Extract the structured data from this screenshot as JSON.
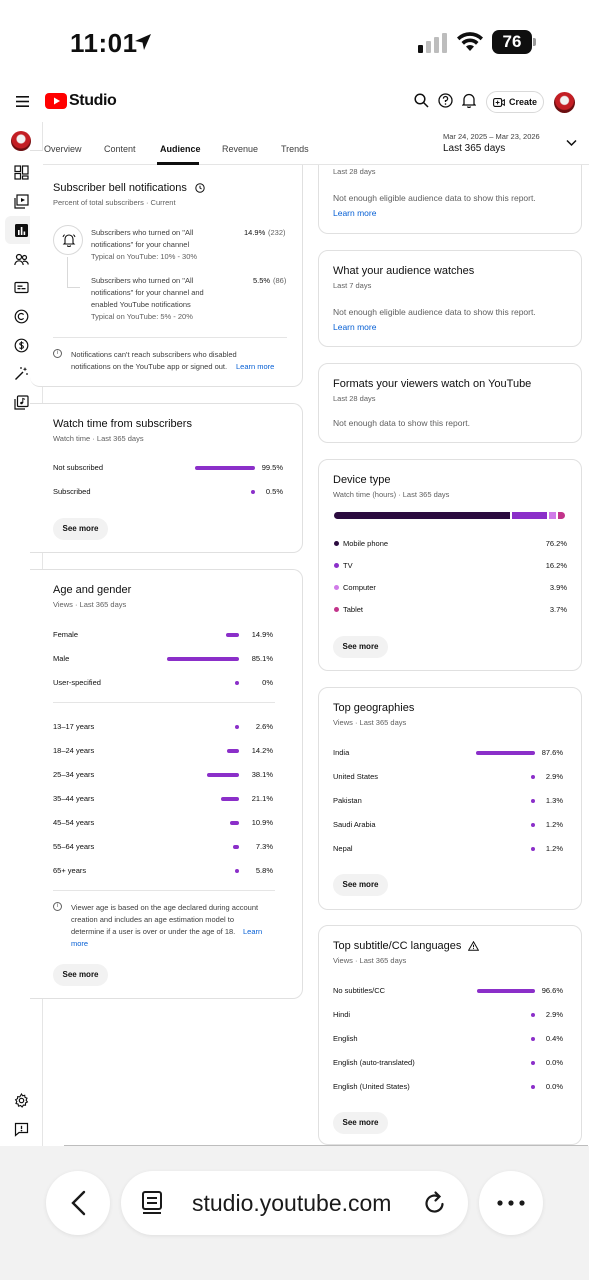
{
  "status_bar": {
    "time": "11:01",
    "battery": "76"
  },
  "header": {
    "brand": "Studio",
    "create_label": "Create"
  },
  "tabs": [
    {
      "label": "Overview"
    },
    {
      "label": "Content"
    },
    {
      "label": "Audience"
    },
    {
      "label": "Revenue"
    },
    {
      "label": "Trends"
    }
  ],
  "date_range": {
    "range": "Mar 24, 2025 – Mar 23, 2026",
    "label": "Last 365 days"
  },
  "bell": {
    "title": "Subscriber bell notifications",
    "subtitle": "Percent of total subscribers · Current",
    "row1": {
      "text_line1": "Subscribers who turned on \"All",
      "text_line2": "notifications\" for your channel",
      "typical": "Typical on YouTube: 10% - 30%",
      "pct": "14.9%",
      "count": "(232)"
    },
    "row2": {
      "text_line1": "Subscribers who turned on \"All",
      "text_line2": "notifications\" for your channel and",
      "text_line3": "enabled YouTube notifications",
      "typical": "Typical on YouTube: 5% - 20%",
      "pct": "5.5%",
      "count": "(86)"
    },
    "note_line1": "Notifications can't reach subscribers who disabled",
    "note_line2": "notifications on the YouTube app or signed out.",
    "learn_more": "Learn more"
  },
  "watch_subs": {
    "title": "Watch time from subscribers",
    "subtitle": "Watch time · Last 365 days",
    "rows": [
      {
        "label": "Not subscribed",
        "value": "99.5%",
        "fraction": 0.995
      },
      {
        "label": "Subscribed",
        "value": "0.5%",
        "fraction": 0.005
      }
    ],
    "see_more": "See more"
  },
  "age_gender": {
    "title": "Age and gender",
    "subtitle": "Views · Last 365 days",
    "gender_rows": [
      {
        "label": "Female",
        "value": "14.9%",
        "fraction": 0.149
      },
      {
        "label": "Male",
        "value": "85.1%",
        "fraction": 0.851
      },
      {
        "label": "User-specified",
        "value": "0%",
        "fraction": 0.0
      }
    ],
    "age_rows": [
      {
        "label": "13–17 years",
        "value": "2.6%",
        "fraction": 0.026
      },
      {
        "label": "18–24 years",
        "value": "14.2%",
        "fraction": 0.142
      },
      {
        "label": "25–34 years",
        "value": "38.1%",
        "fraction": 0.381
      },
      {
        "label": "35–44 years",
        "value": "21.1%",
        "fraction": 0.211
      },
      {
        "label": "45–54 years",
        "value": "10.9%",
        "fraction": 0.109
      },
      {
        "label": "55–64 years",
        "value": "7.3%",
        "fraction": 0.073
      },
      {
        "label": "65+ years",
        "value": "5.8%",
        "fraction": 0.058
      }
    ],
    "note_line1": "Viewer age is based on the age declared during account",
    "note_line2": "creation and includes an age estimation model to",
    "note_line3": "determine if a user is over or under the age of 18.",
    "note_link1": "Learn",
    "note_link2": "more",
    "see_more": "See more"
  },
  "top_card": {
    "subtitle": "Last 28 days",
    "message": "Not enough eligible audience data to show this report.",
    "learn_more": "Learn more"
  },
  "what_watches": {
    "title": "What your audience watches",
    "subtitle": "Last 7 days",
    "message": "Not enough eligible audience data to show this report.",
    "learn_more": "Learn more"
  },
  "formats": {
    "title": "Formats your viewers watch on YouTube",
    "subtitle": "Last 28 days",
    "message": "Not enough data to show this report."
  },
  "device": {
    "title": "Device type",
    "subtitle": "Watch time (hours) · Last 365 days",
    "rows": [
      {
        "label": "Mobile phone",
        "value": "76.2%",
        "fraction": 0.762,
        "color": "#2b0b3f"
      },
      {
        "label": "TV",
        "value": "16.2%",
        "fraction": 0.162,
        "color": "#8b2fc9"
      },
      {
        "label": "Computer",
        "value": "3.9%",
        "fraction": 0.039,
        "color": "#d07be8"
      },
      {
        "label": "Tablet",
        "value": "3.7%",
        "fraction": 0.037,
        "color": "#c2338a"
      }
    ],
    "see_more": "See more"
  },
  "geo": {
    "title": "Top geographies",
    "subtitle": "Views · Last 365 days",
    "rows": [
      {
        "label": "India",
        "value": "87.6%",
        "fraction": 0.876
      },
      {
        "label": "United States",
        "value": "2.9%",
        "fraction": 0.029
      },
      {
        "label": "Pakistan",
        "value": "1.3%",
        "fraction": 0.013
      },
      {
        "label": "Saudi Arabia",
        "value": "1.2%",
        "fraction": 0.012
      },
      {
        "label": "Nepal",
        "value": "1.2%",
        "fraction": 0.012
      }
    ],
    "see_more": "See more"
  },
  "subtitles": {
    "title": "Top subtitle/CC languages",
    "subtitle": "Views · Last 365 days",
    "rows": [
      {
        "label": "No subtitles/CC",
        "value": "96.6%",
        "fraction": 0.966
      },
      {
        "label": "Hindi",
        "value": "2.9%",
        "fraction": 0.029
      },
      {
        "label": "English",
        "value": "0.4%",
        "fraction": 0.004
      },
      {
        "label": "English (auto-translated)",
        "value": "0.0%",
        "fraction": 0.0
      },
      {
        "label": "English (United States)",
        "value": "0.0%",
        "fraction": 0.0
      }
    ],
    "see_more": "See more"
  },
  "browser": {
    "url": "studio.youtube.com"
  },
  "colors": {
    "accent": "#8b2fc9",
    "brand_red": "#ff0000",
    "link": "#065fd4"
  }
}
